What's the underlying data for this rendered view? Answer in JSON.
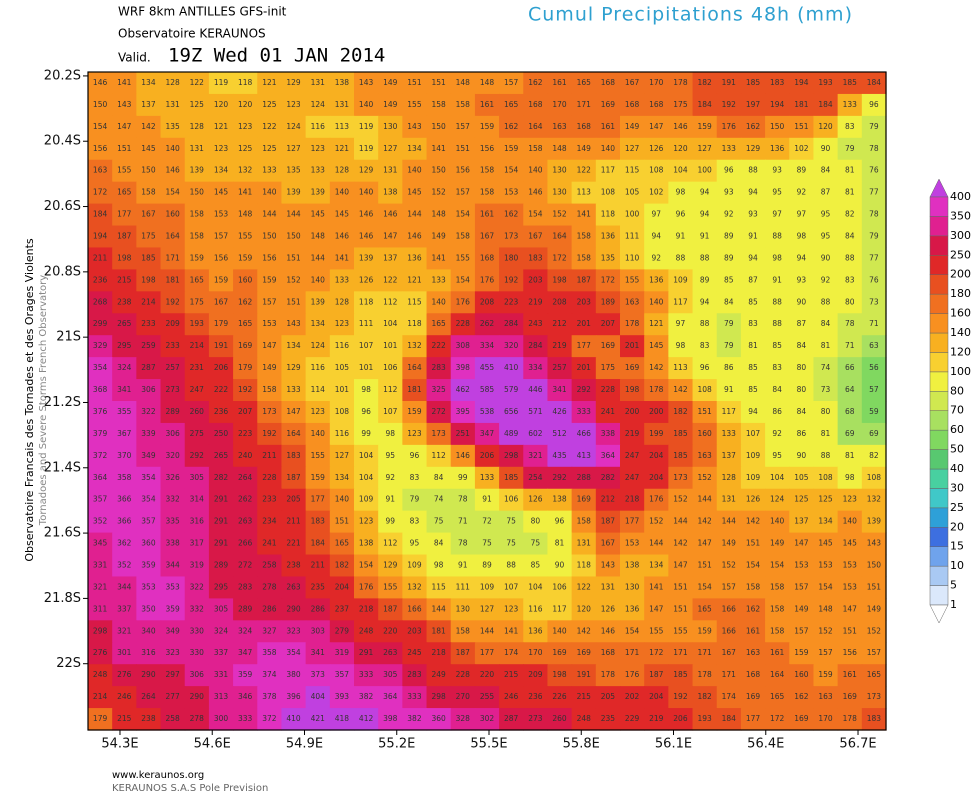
{
  "header": {
    "model": "WRF 8km ANTILLES   GFS-init",
    "org": "Observatoire KERAUNOS",
    "valid_label": "Valid.",
    "valid_time": "19Z Wed 01 JAN 2014",
    "title": "Cumul Precipitations 48h (mm)"
  },
  "side": {
    "line1": "Observatoire Francais des Tornades et des Orages Violents",
    "line2": "Tornadoes and Severe Storms French Observatory"
  },
  "footer": {
    "url": "www.keraunos.org",
    "company": "KERAUNOS S.A.S Pole Prevision"
  },
  "map": {
    "xlim": [
      54.196,
      56.791
    ],
    "ylim": [
      20.188,
      22.203
    ],
    "xticks": [
      {
        "value": 54.3,
        "label": "54.3E"
      },
      {
        "value": 54.6,
        "label": "54.6E"
      },
      {
        "value": 54.9,
        "label": "54.9E"
      },
      {
        "value": 55.2,
        "label": "55.2E"
      },
      {
        "value": 55.5,
        "label": "55.5E"
      },
      {
        "value": 55.8,
        "label": "55.8E"
      },
      {
        "value": 56.1,
        "label": "56.1E"
      },
      {
        "value": 56.4,
        "label": "56.4E"
      },
      {
        "value": 56.7,
        "label": "56.7E"
      }
    ],
    "yticks": [
      {
        "value": 20.2,
        "label": "20.2S"
      },
      {
        "value": 20.4,
        "label": "20.4S"
      },
      {
        "value": 20.6,
        "label": "20.6S"
      },
      {
        "value": 20.8,
        "label": "20.8S"
      },
      {
        "value": 21.0,
        "label": "21S"
      },
      {
        "value": 21.2,
        "label": "21.2S"
      },
      {
        "value": 21.4,
        "label": "21.4S"
      },
      {
        "value": 21.6,
        "label": "21.6S"
      },
      {
        "value": 21.8,
        "label": "21.8S"
      },
      {
        "value": 22.0,
        "label": "22S"
      }
    ],
    "rows": [
      [
        146,
        141,
        134,
        128,
        122,
        119,
        118,
        121,
        129,
        131,
        138,
        143,
        149,
        151,
        151,
        148,
        148,
        157,
        162,
        161,
        165,
        168,
        167,
        170,
        178,
        182,
        191,
        185,
        183,
        194,
        193,
        185,
        184
      ],
      [
        150,
        143,
        137,
        131,
        125,
        120,
        120,
        125,
        123,
        124,
        131,
        140,
        149,
        155,
        158,
        158,
        161,
        165,
        168,
        170,
        171,
        169,
        168,
        168,
        175,
        184,
        192,
        197,
        194,
        181,
        184,
        133,
        96
      ],
      [
        154,
        147,
        142,
        135,
        128,
        121,
        123,
        122,
        124,
        116,
        113,
        119,
        130,
        143,
        150,
        157,
        159,
        162,
        164,
        163,
        168,
        161,
        149,
        147,
        146,
        159,
        176,
        162,
        150,
        151,
        120,
        83,
        79
      ],
      [
        156,
        151,
        145,
        140,
        131,
        123,
        125,
        125,
        127,
        123,
        121,
        119,
        127,
        134,
        141,
        151,
        156,
        159,
        158,
        148,
        149,
        140,
        127,
        126,
        120,
        127,
        133,
        129,
        136,
        102,
        90,
        79,
        78
      ],
      [
        163,
        155,
        150,
        146,
        139,
        134,
        132,
        133,
        135,
        133,
        128,
        129,
        131,
        140,
        150,
        156,
        158,
        154,
        140,
        130,
        122,
        117,
        115,
        108,
        104,
        100,
        96,
        88,
        93,
        89,
        84,
        81,
        76
      ],
      [
        172,
        165,
        158,
        154,
        150,
        145,
        141,
        140,
        139,
        139,
        140,
        140,
        138,
        145,
        152,
        157,
        158,
        153,
        146,
        130,
        113,
        108,
        105,
        102,
        98,
        94,
        93,
        94,
        95,
        92,
        87,
        81,
        77
      ],
      [
        184,
        177,
        167,
        160,
        158,
        153,
        148,
        144,
        144,
        145,
        145,
        146,
        146,
        144,
        148,
        154,
        161,
        162,
        154,
        152,
        141,
        118,
        100,
        97,
        96,
        94,
        92,
        93,
        97,
        97,
        95,
        82,
        78
      ],
      [
        194,
        187,
        175,
        164,
        158,
        157,
        155,
        150,
        150,
        148,
        146,
        146,
        147,
        146,
        149,
        158,
        167,
        173,
        167,
        164,
        158,
        136,
        111,
        94,
        91,
        91,
        89,
        91,
        88,
        98,
        95,
        84,
        79
      ],
      [
        211,
        198,
        185,
        171,
        159,
        156,
        159,
        156,
        151,
        144,
        141,
        139,
        137,
        136,
        141,
        155,
        168,
        180,
        183,
        172,
        158,
        135,
        110,
        92,
        88,
        88,
        89,
        94,
        98,
        94,
        90,
        88,
        77
      ],
      [
        236,
        215,
        198,
        181,
        165,
        159,
        160,
        159,
        152,
        140,
        133,
        126,
        122,
        121,
        133,
        154,
        176,
        192,
        203,
        198,
        187,
        172,
        155,
        136,
        109,
        89,
        85,
        87,
        91,
        93,
        92,
        83,
        76
      ],
      [
        268,
        238,
        214,
        192,
        175,
        167,
        162,
        157,
        151,
        139,
        128,
        118,
        112,
        115,
        140,
        176,
        208,
        223,
        219,
        208,
        203,
        189,
        163,
        140,
        117,
        94,
        84,
        85,
        88,
        90,
        88,
        80,
        73
      ],
      [
        299,
        265,
        233,
        209,
        193,
        179,
        165,
        153,
        143,
        134,
        123,
        111,
        104,
        118,
        165,
        228,
        262,
        284,
        243,
        212,
        201,
        207,
        178,
        121,
        97,
        88,
        79,
        83,
        88,
        87,
        84,
        78,
        71
      ],
      [
        329,
        295,
        259,
        233,
        214,
        191,
        169,
        147,
        134,
        124,
        116,
        107,
        101,
        132,
        222,
        308,
        334,
        320,
        284,
        219,
        177,
        169,
        201,
        145,
        98,
        83,
        79,
        81,
        85,
        84,
        81,
        71,
        63
      ],
      [
        354,
        324,
        287,
        257,
        231,
        206,
        179,
        149,
        129,
        116,
        105,
        101,
        106,
        164,
        283,
        398,
        455,
        410,
        334,
        257,
        201,
        175,
        169,
        142,
        113,
        96,
        86,
        85,
        83,
        80,
        74,
        66,
        56
      ],
      [
        368,
        341,
        306,
        273,
        247,
        222,
        192,
        158,
        133,
        114,
        101,
        98,
        112,
        181,
        325,
        462,
        585,
        579,
        446,
        341,
        292,
        228,
        198,
        178,
        142,
        108,
        91,
        85,
        84,
        80,
        73,
        64,
        57
      ],
      [
        376,
        355,
        322,
        289,
        260,
        236,
        207,
        173,
        147,
        123,
        108,
        96,
        107,
        159,
        272,
        395,
        538,
        656,
        571,
        426,
        333,
        241,
        200,
        200,
        182,
        151,
        117,
        94,
        86,
        84,
        80,
        68,
        59
      ],
      [
        379,
        367,
        339,
        306,
        275,
        250,
        223,
        192,
        164,
        140,
        116,
        99,
        98,
        123,
        173,
        251,
        347,
        489,
        602,
        512,
        466,
        338,
        219,
        199,
        185,
        160,
        133,
        107,
        92,
        86,
        81,
        69,
        69
      ],
      [
        372,
        370,
        349,
        320,
        292,
        265,
        240,
        211,
        183,
        155,
        127,
        104,
        95,
        96,
        112,
        146,
        206,
        298,
        321,
        435,
        413,
        364,
        247,
        204,
        185,
        163,
        137,
        109,
        95,
        90,
        88,
        81,
        82
      ],
      [
        364,
        358,
        354,
        326,
        305,
        282,
        264,
        228,
        187,
        159,
        134,
        104,
        92,
        83,
        84,
        99,
        133,
        185,
        254,
        292,
        288,
        282,
        247,
        204,
        173,
        152,
        128,
        109,
        104,
        105,
        108,
        98,
        108
      ],
      [
        357,
        366,
        354,
        332,
        314,
        291,
        262,
        233,
        205,
        177,
        140,
        109,
        91,
        79,
        74,
        78,
        91,
        106,
        126,
        138,
        169,
        212,
        218,
        176,
        152,
        144,
        131,
        126,
        124,
        125,
        125,
        123,
        132
      ],
      [
        352,
        366,
        357,
        335,
        316,
        291,
        263,
        234,
        211,
        183,
        151,
        123,
        99,
        83,
        75,
        71,
        72,
        75,
        80,
        96,
        158,
        187,
        177,
        152,
        144,
        142,
        144,
        142,
        140,
        137,
        134,
        140,
        139
      ],
      [
        345,
        362,
        360,
        338,
        317,
        291,
        266,
        241,
        221,
        184,
        165,
        138,
        112,
        95,
        84,
        78,
        75,
        75,
        75,
        81,
        131,
        167,
        153,
        144,
        142,
        147,
        149,
        151,
        149,
        147,
        145,
        145,
        143
      ],
      [
        331,
        352,
        359,
        344,
        319,
        289,
        272,
        258,
        238,
        211,
        182,
        154,
        129,
        109,
        98,
        91,
        89,
        88,
        85,
        90,
        118,
        143,
        138,
        134,
        147,
        151,
        152,
        154,
        154,
        153,
        153,
        153,
        150
      ],
      [
        321,
        344,
        353,
        353,
        322,
        295,
        283,
        278,
        263,
        235,
        204,
        176,
        155,
        132,
        115,
        111,
        109,
        107,
        104,
        106,
        122,
        131,
        130,
        141,
        151,
        154,
        157,
        158,
        158,
        157,
        154,
        153,
        151
      ],
      [
        311,
        337,
        350,
        359,
        332,
        305,
        289,
        286,
        290,
        286,
        237,
        218,
        187,
        166,
        144,
        130,
        127,
        123,
        116,
        117,
        120,
        126,
        136,
        147,
        151,
        165,
        166,
        162,
        158,
        149,
        148,
        147,
        149
      ],
      [
        298,
        321,
        340,
        349,
        330,
        324,
        324,
        327,
        323,
        303,
        279,
        248,
        220,
        203,
        181,
        158,
        144,
        141,
        136,
        140,
        142,
        146,
        154,
        155,
        155,
        159,
        166,
        161,
        158,
        157,
        152,
        151,
        152
      ],
      [
        276,
        301,
        316,
        323,
        330,
        337,
        347,
        358,
        354,
        341,
        319,
        291,
        263,
        245,
        218,
        187,
        177,
        174,
        170,
        169,
        169,
        168,
        171,
        172,
        171,
        171,
        167,
        163,
        161,
        159,
        157,
        156,
        157
      ],
      [
        248,
        276,
        290,
        297,
        306,
        331,
        359,
        374,
        380,
        373,
        357,
        333,
        305,
        283,
        249,
        228,
        220,
        215,
        209,
        198,
        191,
        178,
        176,
        187,
        185,
        178,
        171,
        168,
        164,
        160,
        159,
        161,
        165
      ],
      [
        214,
        246,
        264,
        277,
        290,
        313,
        346,
        378,
        396,
        404,
        393,
        382,
        364,
        333,
        298,
        270,
        255,
        246,
        236,
        226,
        215,
        205,
        202,
        204,
        192,
        182,
        174,
        169,
        165,
        162,
        163,
        169,
        173
      ],
      [
        179,
        215,
        238,
        258,
        278,
        300,
        333,
        372,
        410,
        421,
        418,
        412,
        398,
        382,
        360,
        328,
        302,
        287,
        273,
        260,
        248,
        235,
        229,
        219,
        206,
        193,
        184,
        177,
        172,
        169,
        170,
        178,
        183
      ]
    ]
  },
  "colorbar": {
    "levels": [
      1,
      5,
      10,
      15,
      20,
      25,
      30,
      40,
      50,
      60,
      70,
      80,
      100,
      120,
      140,
      160,
      180,
      200,
      250,
      300,
      350,
      400
    ],
    "colors": [
      "#ffffff",
      "#dbe8fb",
      "#a9c9f3",
      "#6fa3ec",
      "#3d6fe0",
      "#2ea0d8",
      "#40c8c8",
      "#48d0a0",
      "#58c870",
      "#80d860",
      "#a8e060",
      "#d0e850",
      "#f0f040",
      "#f8d030",
      "#f8b020",
      "#f89020",
      "#f07020",
      "#e85020",
      "#e02828",
      "#d81848",
      "#e02090",
      "#e030c0",
      "#c040e0"
    ]
  }
}
